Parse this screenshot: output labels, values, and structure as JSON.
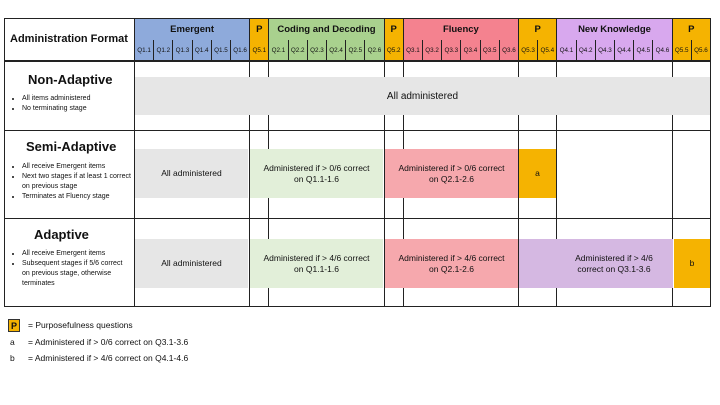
{
  "header": {
    "admin_format": "Administration Format",
    "groups": [
      {
        "label": "Emergent",
        "color": "#8eaadb",
        "questions": [
          "Q1.1",
          "Q1.2",
          "Q1.3",
          "Q1.4",
          "Q1.5",
          "Q1.6"
        ]
      },
      {
        "label": "P",
        "color": "#f5b301",
        "questions": [
          "Q5.1"
        ]
      },
      {
        "label": "Coding and Decoding",
        "color": "#a9d18e",
        "questions": [
          "Q2.1",
          "Q2.2",
          "Q2.3",
          "Q2.4",
          "Q2.5",
          "Q2.6"
        ]
      },
      {
        "label": "P",
        "color": "#f5b301",
        "questions": [
          "Q5.2"
        ]
      },
      {
        "label": "Fluency",
        "color": "#f4828f",
        "questions": [
          "Q3.1",
          "Q3.2",
          "Q3.3",
          "Q3.4",
          "Q3.5",
          "Q3.6"
        ]
      },
      {
        "label": "P",
        "color": "#f5b301",
        "questions": [
          "Q5.3",
          "Q5.4"
        ]
      },
      {
        "label": "New Knowledge",
        "color": "#d8a8ee",
        "questions": [
          "Q4.1",
          "Q4.2",
          "Q4.3",
          "Q4.4",
          "Q4.5",
          "Q4.6"
        ]
      },
      {
        "label": "P",
        "color": "#f5b301",
        "questions": [
          "Q5.5",
          "Q5.6"
        ]
      }
    ]
  },
  "rows": {
    "non_adaptive": {
      "title": "Non-Adaptive",
      "bullets": [
        "All items administered",
        "No terminating stage"
      ],
      "cell": "All administered"
    },
    "semi_adaptive": {
      "title": "Semi-Adaptive",
      "bullets": [
        "All receive Emergent items",
        "Next two stages if at least 1 correct on previous stage",
        "Terminates at Fluency stage"
      ],
      "cell_emergent": "All administered",
      "cell_coding": "Administered if > 0/6 correct on Q1.1-1.6",
      "cell_fluency": "Administered if > 0/6 correct on Q2.1-2.6",
      "cell_p": "a"
    },
    "adaptive": {
      "title": "Adaptive",
      "bullets": [
        "All receive Emergent items",
        "Subsequent stages if 5/6 correct on previous stage, otherwise terminates"
      ],
      "cell_emergent": "All administered",
      "cell_coding": "Administered if > 4/6 correct on Q1.1-1.6",
      "cell_fluency": "Administered if > 4/6 correct on Q2.1-2.6",
      "cell_newknowledge": "Administered if > 4/6 correct on Q3.1-3.6",
      "cell_p": "b"
    }
  },
  "legend": {
    "p_symbol": "P",
    "p_text": "= Purposefulness questions",
    "a_key": "a",
    "a_text": "= Administered if > 0/6 correct on Q3.1-3.6",
    "b_key": "b",
    "b_text": "= Administered if > 4/6 correct on Q4.1-4.6"
  }
}
